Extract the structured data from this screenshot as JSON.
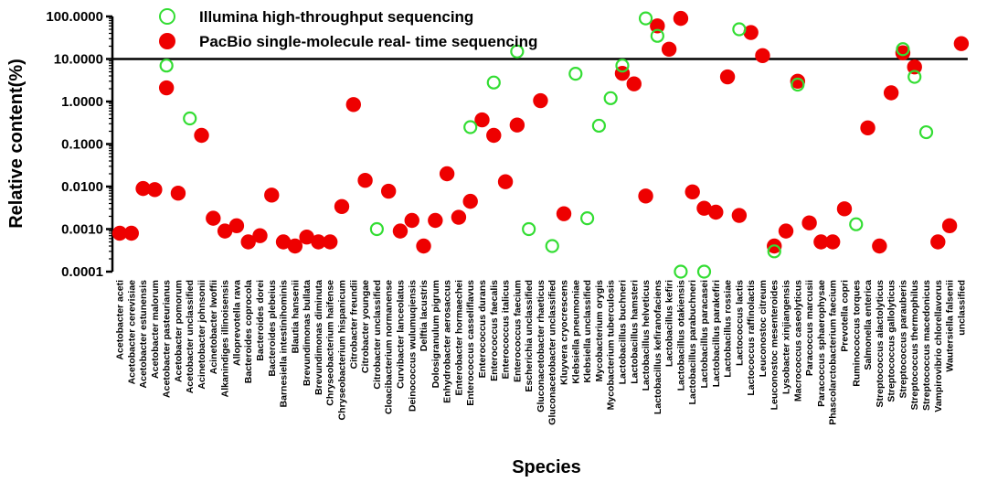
{
  "chart_data": {
    "type": "scatter",
    "xlabel": "Species",
    "ylabel": "Relative content(%)",
    "y_scale": "log",
    "ylim": [
      0.0001,
      100
    ],
    "yticks": [
      "0.0001",
      "0.0010",
      "0.0100",
      "0.1000",
      "1.0000",
      "10.0000",
      "100.0000"
    ],
    "reference_line": 10,
    "legend": {
      "position": "top-left",
      "entries": [
        {
          "series": "illumina",
          "label": "Illumina high-throughput sequencing"
        },
        {
          "series": "pacbio",
          "label": "PacBio single-molecule real- time sequencing"
        }
      ]
    },
    "colors": {
      "illumina": "#33dd33",
      "pacbio": "#ee0000",
      "axis": "#000000"
    },
    "categories": [
      "Acetobacter aceti",
      "Acetobacter cerevisiae",
      "Acetobacter estunensis",
      "Acetobacter malorum",
      "Acetobacter pasteurianus",
      "Acetobacter pomorum",
      "Acetobacter unclassified",
      "Acinetobacter johnsonii",
      "Acinetobacter lwoffii",
      "Alkanindiges illinoisensis",
      "Alloprevotella rava",
      "Bacteroides coprocola",
      "Bacteroides dorei",
      "Bacteroides plebeius",
      "Barnesiella intestinihominis",
      "Blautia hansenii",
      "Brevundimonas bullata",
      "Brevundimonas diminuta",
      "Chryseobacterium haifense",
      "Chryseobacterium hispanicum",
      "Citrobacter freundii",
      "Citrobacter youngae",
      "Citrobacter unclassified",
      "Cloacibacterium normanense",
      "Curvibacter lanceolatus",
      "Deinococcus wulumuqiensis",
      "Delftia lacustris",
      "Dolosigranulum pigrum",
      "Enhydrobacter aerosaccus",
      "Enterobacter hormaechei",
      "Enterococcus casseliflavus",
      "Enterococcus durans",
      "Enterococcus faecalis",
      "Enterococcus italicus",
      "Enterococcus faecium",
      "Escherichia unclassified",
      "Gluconacetobacter rhaeticus",
      "Gluconacetobacter unclassified",
      "Kluyvera cryocrescens",
      "Klebsiella pneumoniae",
      "Klebsiella unclassified",
      "Mycobacterium orygis",
      "Mycobacterium tuberculosis",
      "Lactobacillus buchneri",
      "Lactobacillus hamsteri",
      "Lactobacillus helveticus",
      "Lactobacillus kefiranofaciens",
      "Lactobacillus kefiri",
      "Lactobacillus otakiensis",
      "Lactobacillus parabuchneri",
      "Lactobacillus paracasei",
      "Lactobacillus parakefiri",
      "Lactobacillus rossiae",
      "Lactococcus lactis",
      "Lactococcus raffinolactis",
      "Leuconostoc citreum",
      "Leuconostoc mesenteroides",
      "Lysobacter xinjiangensis",
      "Macrococcus caseolyticus",
      "Paracoccus marcusii",
      "Paracoccus sphaerophysae",
      "Phascolarctobacterium faecium",
      "Prevotella copri",
      "Ruminococcus torques",
      "Salmonella enterica",
      "Streptococcus alactolyticus",
      "Streptococcus gallolyticus",
      "Streptococcus parauberis",
      "Streptococcus thermophilus",
      "Streptococcus macedonicus",
      "Vampirovibrio chlorellavorus",
      "Wautersiella falsenii",
      "unclassified"
    ],
    "series": [
      {
        "name": "Illumina high-throughput sequencing",
        "marker": "open-circle",
        "points": [
          {
            "category": "Acetobacter pasteurianus",
            "y": 7
          },
          {
            "category": "Acetobacter unclassified",
            "y": 0.4
          },
          {
            "category": "Citrobacter unclassified",
            "y": 0.001
          },
          {
            "category": "Enterococcus casseliflavus",
            "y": 0.25
          },
          {
            "category": "Enterococcus faecalis",
            "y": 2.8
          },
          {
            "category": "Enterococcus faecium",
            "y": 15
          },
          {
            "category": "Escherichia unclassified",
            "y": 0.001
          },
          {
            "category": "Gluconacetobacter unclassified",
            "y": 0.0004
          },
          {
            "category": "Klebsiella pneumoniae",
            "y": 4.5
          },
          {
            "category": "Klebsiella unclassified",
            "y": 0.0018
          },
          {
            "category": "Mycobacterium orygis",
            "y": 0.27
          },
          {
            "category": "Mycobacterium tuberculosis",
            "y": 1.2
          },
          {
            "category": "Lactobacillus buchneri",
            "y": 7
          },
          {
            "category": "Lactobacillus helveticus",
            "y": 90
          },
          {
            "category": "Lactobacillus kefiranofaciens",
            "y": 35
          },
          {
            "category": "Lactobacillus otakiensis",
            "y": 0.0001
          },
          {
            "category": "Lactobacillus paracasei",
            "y": 0.0001
          },
          {
            "category": "Lactococcus lactis",
            "y": 50
          },
          {
            "category": "Leuconostoc mesenteroides",
            "y": 0.0003
          },
          {
            "category": "Macrococcus caseolyticus",
            "y": 2.5
          },
          {
            "category": "Ruminococcus torques",
            "y": 0.0013
          },
          {
            "category": "Streptococcus parauberis",
            "y": 17
          },
          {
            "category": "Streptococcus thermophilus",
            "y": 3.8
          },
          {
            "category": "Streptococcus macedonicus",
            "y": 0.19
          }
        ]
      },
      {
        "name": "PacBio single-molecule real- time sequencing",
        "marker": "filled-circle",
        "points": [
          {
            "category": "Acetobacter aceti",
            "y": 0.0008
          },
          {
            "category": "Acetobacter cerevisiae",
            "y": 0.0008
          },
          {
            "category": "Acetobacter estunensis",
            "y": 0.009
          },
          {
            "category": "Acetobacter malorum",
            "y": 0.0085
          },
          {
            "category": "Acetobacter pasteurianus",
            "y": 2.1
          },
          {
            "category": "Acetobacter pomorum",
            "y": 0.007
          },
          {
            "category": "Acinetobacter johnsonii",
            "y": 0.16
          },
          {
            "category": "Acinetobacter lwoffii",
            "y": 0.0018
          },
          {
            "category": "Alkanindiges illinoisensis",
            "y": 0.0009
          },
          {
            "category": "Alloprevotella rava",
            "y": 0.0012
          },
          {
            "category": "Bacteroides coprocola",
            "y": 0.0005
          },
          {
            "category": "Bacteroides dorei",
            "y": 0.0007
          },
          {
            "category": "Bacteroides plebeius",
            "y": 0.0063
          },
          {
            "category": "Barnesiella intestinihominis",
            "y": 0.0005
          },
          {
            "category": "Blautia hansenii",
            "y": 0.0004
          },
          {
            "category": "Brevundimonas bullata",
            "y": 0.00065
          },
          {
            "category": "Brevundimonas diminuta",
            "y": 0.0005
          },
          {
            "category": "Chryseobacterium haifense",
            "y": 0.0005
          },
          {
            "category": "Chryseobacterium hispanicum",
            "y": 0.0034
          },
          {
            "category": "Citrobacter freundii",
            "y": 0.85
          },
          {
            "category": "Citrobacter youngae",
            "y": 0.014
          },
          {
            "category": "Cloacibacterium normanense",
            "y": 0.0078
          },
          {
            "category": "Curvibacter lanceolatus",
            "y": 0.0009
          },
          {
            "category": "Deinococcus wulumuqiensis",
            "y": 0.0016
          },
          {
            "category": "Delftia lacustris",
            "y": 0.0004
          },
          {
            "category": "Dolosigranulum pigrum",
            "y": 0.0016
          },
          {
            "category": "Enhydrobacter aerosaccus",
            "y": 0.02
          },
          {
            "category": "Enterobacter hormaechei",
            "y": 0.0019
          },
          {
            "category": "Enterococcus casseliflavus",
            "y": 0.0045
          },
          {
            "category": "Enterococcus durans",
            "y": 0.37
          },
          {
            "category": "Enterococcus faecalis",
            "y": 0.16
          },
          {
            "category": "Enterococcus italicus",
            "y": 0.013
          },
          {
            "category": "Enterococcus faecium",
            "y": 0.28
          },
          {
            "category": "Gluconacetobacter rhaeticus",
            "y": 1.05
          },
          {
            "category": "Kluyvera cryocrescens",
            "y": 0.0023
          },
          {
            "category": "Lactobacillus buchneri",
            "y": 4.6
          },
          {
            "category": "Lactobacillus hamsteri",
            "y": 2.6
          },
          {
            "category": "Lactobacillus helveticus",
            "y": 0.006
          },
          {
            "category": "Lactobacillus kefiranofaciens",
            "y": 60
          },
          {
            "category": "Lactobacillus kefiri",
            "y": 17
          },
          {
            "category": "Lactobacillus otakiensis",
            "y": 90
          },
          {
            "category": "Lactobacillus parabuchneri",
            "y": 0.0075
          },
          {
            "category": "Lactobacillus paracasei",
            "y": 0.0031
          },
          {
            "category": "Lactobacillus parakefiri",
            "y": 0.0025
          },
          {
            "category": "Lactobacillus rossiae",
            "y": 3.8
          },
          {
            "category": "Lactococcus lactis",
            "y": 0.0021
          },
          {
            "category": "Lactococcus raffinolactis",
            "y": 42
          },
          {
            "category": "Leuconostoc citreum",
            "y": 12
          },
          {
            "category": "Leuconostoc mesenteroides",
            "y": 0.0004
          },
          {
            "category": "Lysobacter xinjiangensis",
            "y": 0.0009
          },
          {
            "category": "Macrococcus caseolyticus",
            "y": 3
          },
          {
            "category": "Paracoccus marcusii",
            "y": 0.0014
          },
          {
            "category": "Paracoccus sphaerophysae",
            "y": 0.0005
          },
          {
            "category": "Phascolarctobacterium faecium",
            "y": 0.0005
          },
          {
            "category": "Prevotella copri",
            "y": 0.003
          },
          {
            "category": "Salmonella enterica",
            "y": 0.24
          },
          {
            "category": "Streptococcus alactolyticus",
            "y": 0.0004
          },
          {
            "category": "Streptococcus gallolyticus",
            "y": 1.6
          },
          {
            "category": "Streptococcus parauberis",
            "y": 14
          },
          {
            "category": "Streptococcus thermophilus",
            "y": 6.5
          },
          {
            "category": "Vampirovibrio chlorellavorus",
            "y": 0.0005
          },
          {
            "category": "Wautersiella falsenii",
            "y": 0.0012
          },
          {
            "category": "unclassified",
            "y": 23
          }
        ]
      }
    ]
  }
}
